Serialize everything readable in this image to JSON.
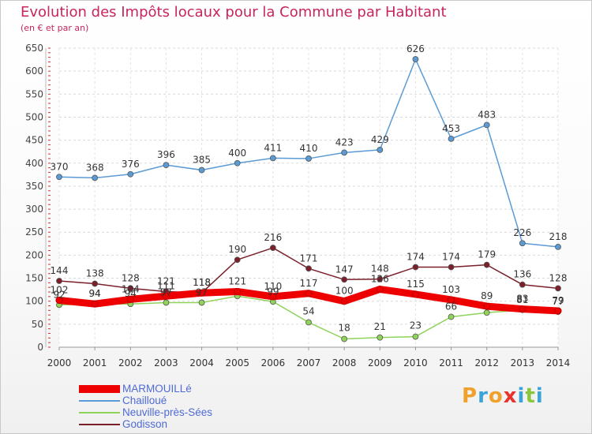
{
  "chart_data": {
    "type": "line",
    "title": "Evolution des Impôts locaux pour la Commune par Habitant",
    "subtitle": "(en € et par an)",
    "xlabel": "",
    "ylabel": "",
    "categories": [
      "2000",
      "2001",
      "2002",
      "2003",
      "2004",
      "2005",
      "2006",
      "2007",
      "2008",
      "2009",
      "2010",
      "2011",
      "2012",
      "2013",
      "2014"
    ],
    "ylim": [
      0,
      650
    ],
    "yticks": [
      0,
      50,
      100,
      150,
      200,
      250,
      300,
      350,
      400,
      450,
      500,
      550,
      600,
      650
    ],
    "grid": true,
    "legend_position": "bottom-left",
    "series": [
      {
        "name": "MARMOUILLé",
        "color": "#ee0000",
        "values": [
          102,
          94,
          104,
          111,
          118,
          121,
          110,
          117,
          100,
          126,
          115,
          103,
          89,
          83,
          79
        ]
      },
      {
        "name": "Chailloué",
        "color": "#5b9bd5",
        "values": [
          370,
          368,
          376,
          396,
          385,
          400,
          411,
          410,
          423,
          429,
          626,
          453,
          483,
          226,
          218
        ]
      },
      {
        "name": "Neuville-près-Sées",
        "color": "#8fd35a",
        "values": [
          92,
          94,
          94,
          97,
          97,
          111,
          99,
          54,
          18,
          21,
          23,
          66,
          75,
          81,
          77
        ]
      },
      {
        "name": "Godisson",
        "color": "#7b1f2a",
        "values": [
          144,
          138,
          128,
          121,
          118,
          190,
          216,
          171,
          147,
          148,
          174,
          174,
          179,
          136,
          128
        ]
      }
    ],
    "labels_shown": {
      "MARMOUILLé": [
        102,
        94,
        104,
        111,
        118,
        121,
        110,
        117,
        100,
        126,
        115,
        103,
        89,
        83,
        79
      ],
      "Chailloué": [
        370,
        368,
        376,
        396,
        385,
        400,
        411,
        410,
        423,
        429,
        626,
        453,
        483,
        226,
        218
      ],
      "Neuville-près-Sées": [
        92,
        94,
        94,
        97,
        97,
        null,
        99,
        54,
        18,
        21,
        23,
        66,
        null,
        81,
        77
      ],
      "Godisson": [
        144,
        138,
        128,
        121,
        118,
        190,
        216,
        171,
        147,
        148,
        174,
        174,
        179,
        136,
        128
      ]
    }
  },
  "logo": {
    "text": "Proxiti",
    "letters": [
      "P",
      "r",
      "o",
      "x",
      "i",
      "t",
      "i"
    ],
    "colors": [
      "#f0a12b",
      "#3aa3d8",
      "#f0a12b",
      "#e8322b",
      "#3aa3d8",
      "#8cc63f",
      "#3aa3d8"
    ]
  }
}
